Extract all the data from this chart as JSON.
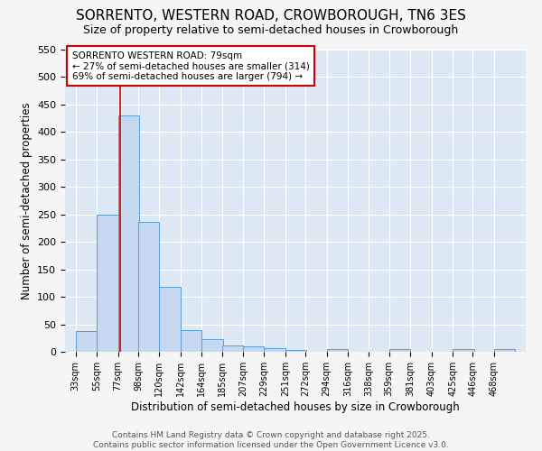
{
  "title": "SORRENTO, WESTERN ROAD, CROWBOROUGH, TN6 3ES",
  "subtitle": "Size of property relative to semi-detached houses in Crowborough",
  "xlabel": "Distribution of semi-detached houses by size in Crowborough",
  "ylabel": "Number of semi-detached properties",
  "bin_edges": [
    33,
    55,
    77,
    98,
    120,
    142,
    164,
    185,
    207,
    229,
    251,
    272,
    294,
    316,
    338,
    359,
    381,
    403,
    425,
    446,
    468
  ],
  "bar_heights": [
    38,
    250,
    430,
    237,
    119,
    40,
    23,
    11,
    10,
    7,
    4,
    0,
    5,
    0,
    0,
    5,
    0,
    0,
    5,
    0,
    5
  ],
  "bar_color": "#c5d8f0",
  "bar_edge_color": "#5b9bd5",
  "property_size": 79,
  "red_line_color": "#cc0000",
  "annotation_title": "SORRENTO WESTERN ROAD: 79sqm",
  "annotation_line1": "← 27% of semi-detached houses are smaller (314)",
  "annotation_line2": "69% of semi-detached houses are larger (794) →",
  "annotation_box_color": "#ffffff",
  "annotation_box_edge": "#cc0000",
  "ylim": [
    0,
    550
  ],
  "yticks": [
    0,
    50,
    100,
    150,
    200,
    250,
    300,
    350,
    400,
    450,
    500,
    550
  ],
  "footer_line1": "Contains HM Land Registry data © Crown copyright and database right 2025.",
  "footer_line2": "Contains public sector information licensed under the Open Government Licence v3.0.",
  "fig_bg_color": "#f5f5f5",
  "plot_bg_color": "#dce9f5",
  "grid_color": "#ffffff",
  "title_fontsize": 11,
  "subtitle_fontsize": 9,
  "axis_label_fontsize": 8.5,
  "tick_label_fontsize": 7,
  "footer_fontsize": 6.5,
  "annotation_fontsize": 7.5
}
